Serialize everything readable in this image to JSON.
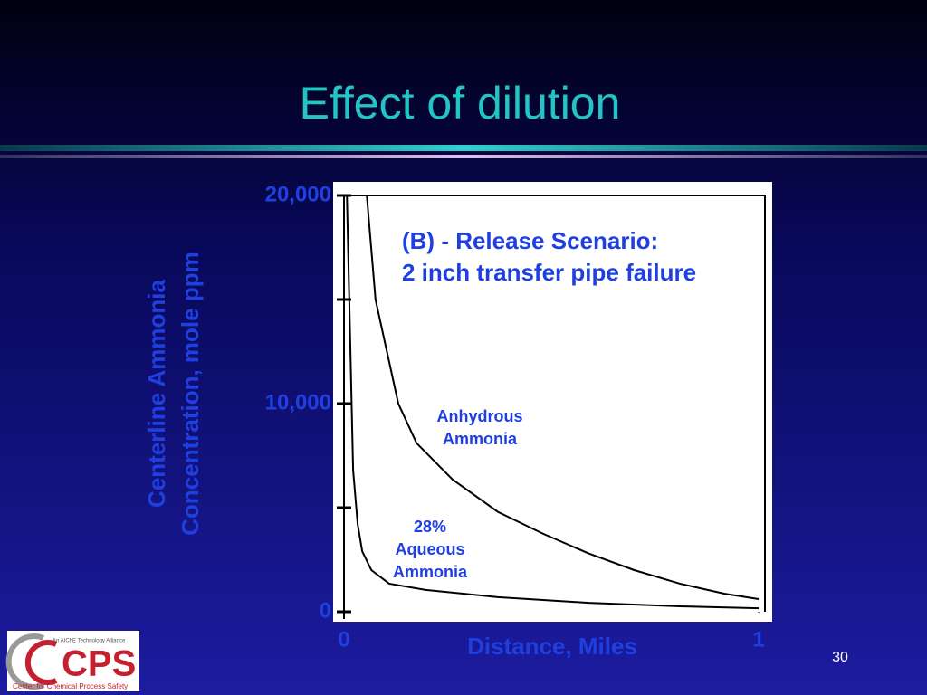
{
  "title": "Effect of dilution",
  "page_number": "30",
  "logo": {
    "name": "CPS",
    "tagline": "An AIChE Technology Alliance",
    "full_name": "Center for Chemical Process Safety"
  },
  "chart_data": {
    "type": "line",
    "annotation": [
      "(B) - Release Scenario:",
      "2 inch transfer pipe failure"
    ],
    "xlabel": "Distance, Miles",
    "ylabel": [
      "Centerline Ammonia",
      "Concentration, mole ppm"
    ],
    "xlim": [
      0,
      1
    ],
    "xticks": [
      0,
      1
    ],
    "ylim": [
      0,
      20000
    ],
    "yticks": [
      0,
      {
        "value": 10000,
        "label": "10,000"
      },
      {
        "value": 20000,
        "label": "20,000"
      }
    ],
    "yminor": [
      5000,
      15000
    ],
    "series": [
      {
        "name": "Anhydrous Ammonia",
        "color": "#000000",
        "x": [
          0.055,
          0.076,
          0.109,
          0.131,
          0.175,
          0.262,
          0.371,
          0.48,
          0.59,
          0.7,
          0.81,
          0.917,
          1.0
        ],
        "values": [
          20000,
          15000,
          12000,
          10000,
          8100,
          6350,
          4800,
          3750,
          2800,
          2000,
          1350,
          870,
          610
        ]
      },
      {
        "name": "28% Aqueous Ammonia",
        "color": "#000000",
        "x": [
          0.007,
          0.022,
          0.033,
          0.044,
          0.066,
          0.109,
          0.197,
          0.371,
          0.59,
          0.81,
          1.0
        ],
        "values": [
          20000,
          6800,
          4200,
          2900,
          2000,
          1350,
          1050,
          700,
          430,
          260,
          170
        ]
      }
    ]
  }
}
